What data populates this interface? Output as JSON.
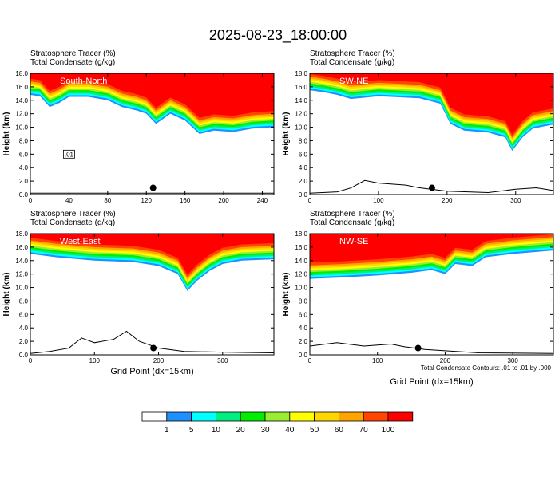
{
  "title": "2025-08-23_18:00:00",
  "contour_note": "Total Condensate Contours: .01 to .01 by .000",
  "colorbar": {
    "levels": [
      "1",
      "5",
      "10",
      "20",
      "30",
      "40",
      "50",
      "60",
      "70",
      "100"
    ],
    "colors": [
      "#ffffff",
      "#1e90ff",
      "#00ffff",
      "#00ee7f",
      "#00ee00",
      "#9aee32",
      "#ffff00",
      "#ffd700",
      "#ffa500",
      "#ff4500",
      "#ff0000"
    ]
  },
  "chart_data": [
    {
      "type": "heatmap",
      "section": "South-North",
      "header_line1": "Stratosphere Tracer    (%)",
      "header_line2": "Total Condensate    (g/kg)",
      "ylabel": "Height (km)",
      "xlabel": "",
      "xlim": [
        0,
        252
      ],
      "ylim": [
        0,
        18
      ],
      "xticks": [
        "0",
        "40",
        "80",
        "120",
        "160",
        "200",
        "240"
      ],
      "xtick_values": [
        0,
        40,
        80,
        120,
        160,
        200,
        240
      ],
      "yticks": [
        "0.0",
        "2.0",
        "4.0",
        "6.0",
        "8.0",
        "10.0",
        "12.0",
        "14.0",
        "16.0",
        "18.0"
      ],
      "tracer_base_km": [
        [
          0,
          14.8
        ],
        [
          10,
          14.6
        ],
        [
          20,
          13.0
        ],
        [
          30,
          13.6
        ],
        [
          40,
          14.5
        ],
        [
          60,
          14.5
        ],
        [
          80,
          14.0
        ],
        [
          95,
          13.0
        ],
        [
          110,
          12.5
        ],
        [
          120,
          12.0
        ],
        [
          130,
          10.5
        ],
        [
          145,
          12.0
        ],
        [
          160,
          11.0
        ],
        [
          175,
          9.0
        ],
        [
          190,
          9.5
        ],
        [
          210,
          9.3
        ],
        [
          230,
          9.8
        ],
        [
          252,
          10.0
        ]
      ],
      "contour_label": ".01",
      "marker_x": 127,
      "marker_km": 1.0,
      "terrain_km": [
        [
          0,
          0.2
        ],
        [
          252,
          0.2
        ]
      ]
    },
    {
      "type": "heatmap",
      "section": "SW-NE",
      "header_line1": "Stratosphere Tracer    (%)",
      "header_line2": "Total Condensate    (g/kg)",
      "ylabel": "Height (km)",
      "xlabel": "",
      "xlim": [
        0,
        355
      ],
      "ylim": [
        0,
        18
      ],
      "xticks": [
        "0",
        "100",
        "200",
        "300"
      ],
      "xtick_values": [
        0,
        100,
        200,
        300
      ],
      "yticks": [
        "0.0",
        "2.0",
        "4.0",
        "6.0",
        "8.0",
        "10.0",
        "12.0",
        "14.0",
        "16.0",
        "18.0"
      ],
      "tracer_base_km": [
        [
          0,
          15.5
        ],
        [
          20,
          15.2
        ],
        [
          40,
          14.8
        ],
        [
          60,
          14.2
        ],
        [
          100,
          14.6
        ],
        [
          160,
          14.3
        ],
        [
          190,
          13.5
        ],
        [
          205,
          10.5
        ],
        [
          225,
          9.5
        ],
        [
          260,
          9.2
        ],
        [
          285,
          8.5
        ],
        [
          295,
          6.5
        ],
        [
          310,
          8.5
        ],
        [
          325,
          9.8
        ],
        [
          345,
          10.2
        ],
        [
          355,
          10.4
        ]
      ],
      "contour_label": "",
      "marker_x": 178,
      "marker_km": 1.0,
      "terrain_km": [
        [
          0,
          0.2
        ],
        [
          40,
          0.4
        ],
        [
          60,
          1.0
        ],
        [
          80,
          2.1
        ],
        [
          100,
          1.7
        ],
        [
          140,
          1.4
        ],
        [
          160,
          1.0
        ],
        [
          200,
          0.5
        ],
        [
          260,
          0.3
        ],
        [
          300,
          0.8
        ],
        [
          330,
          1.0
        ],
        [
          355,
          0.6
        ]
      ]
    },
    {
      "type": "heatmap",
      "section": "West-East",
      "header_line1": "Stratosphere Tracer    (%)",
      "header_line2": "Total Condensate    (g/kg)",
      "ylabel": "Height (km)",
      "xlabel": "Grid Point (dx=15km)",
      "xlim": [
        0,
        380
      ],
      "ylim": [
        0,
        18
      ],
      "xticks": [
        "0",
        "100",
        "200",
        "300"
      ],
      "xtick_values": [
        0,
        100,
        200,
        300
      ],
      "yticks": [
        "0.0",
        "2.0",
        "4.0",
        "6.0",
        "8.0",
        "10.0",
        "12.0",
        "14.0",
        "16.0",
        "18.0"
      ],
      "tracer_base_km": [
        [
          0,
          15.0
        ],
        [
          40,
          14.5
        ],
        [
          100,
          14.0
        ],
        [
          160,
          13.8
        ],
        [
          200,
          13.2
        ],
        [
          230,
          12.0
        ],
        [
          245,
          9.5
        ],
        [
          260,
          11.0
        ],
        [
          280,
          12.5
        ],
        [
          300,
          13.5
        ],
        [
          330,
          14.0
        ],
        [
          380,
          14.2
        ]
      ],
      "contour_label": "",
      "marker_x": 192,
      "marker_km": 1.0,
      "terrain_km": [
        [
          0,
          0.2
        ],
        [
          30,
          0.5
        ],
        [
          60,
          1.0
        ],
        [
          80,
          2.5
        ],
        [
          100,
          1.8
        ],
        [
          130,
          2.3
        ],
        [
          150,
          3.5
        ],
        [
          170,
          2.0
        ],
        [
          200,
          1.0
        ],
        [
          240,
          0.5
        ],
        [
          300,
          0.4
        ],
        [
          380,
          0.3
        ]
      ]
    },
    {
      "type": "heatmap",
      "section": "NW-SE",
      "header_line1": "Stratosphere Tracer    (%)",
      "header_line2": "Total Condensate    (g/kg)",
      "ylabel": "Height (km)",
      "xlabel": "Grid Point (dx=15km)",
      "xlim": [
        0,
        360
      ],
      "ylim": [
        0,
        18
      ],
      "xticks": [
        "0",
        "100",
        "200",
        "300"
      ],
      "xtick_values": [
        0,
        100,
        200,
        300
      ],
      "yticks": [
        "0.0",
        "2.0",
        "4.0",
        "6.0",
        "8.0",
        "10.0",
        "12.0",
        "14.0",
        "16.0",
        "18.0"
      ],
      "tracer_base_km": [
        [
          0,
          11.3
        ],
        [
          50,
          11.5
        ],
        [
          100,
          11.8
        ],
        [
          150,
          12.2
        ],
        [
          180,
          12.6
        ],
        [
          200,
          12.0
        ],
        [
          215,
          13.5
        ],
        [
          240,
          13.2
        ],
        [
          260,
          14.5
        ],
        [
          300,
          15.0
        ],
        [
          360,
          15.5
        ]
      ],
      "contour_label": "",
      "marker_x": 160,
      "marker_km": 1.0,
      "terrain_km": [
        [
          0,
          1.3
        ],
        [
          40,
          1.8
        ],
        [
          80,
          1.3
        ],
        [
          120,
          1.6
        ],
        [
          140,
          1.2
        ],
        [
          170,
          0.8
        ],
        [
          200,
          0.6
        ],
        [
          250,
          0.3
        ],
        [
          360,
          0.2
        ]
      ]
    }
  ]
}
